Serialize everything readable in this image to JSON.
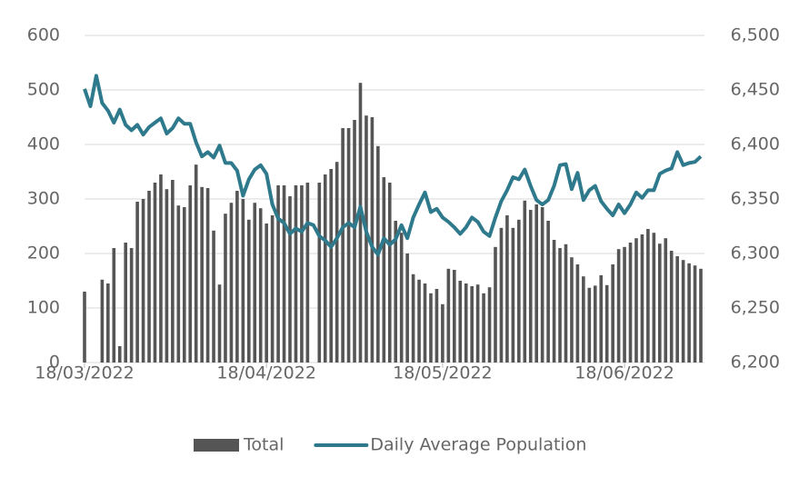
{
  "chart_data": {
    "type": "bar-line",
    "categories": [
      "18/03/2022",
      null,
      null,
      null,
      null,
      null,
      null,
      null,
      null,
      null,
      null,
      null,
      null,
      null,
      null,
      null,
      null,
      null,
      null,
      null,
      null,
      null,
      null,
      null,
      null,
      null,
      null,
      null,
      null,
      null,
      null,
      "18/04/2022",
      null,
      null,
      null,
      null,
      null,
      null,
      null,
      null,
      null,
      null,
      null,
      null,
      null,
      null,
      null,
      null,
      null,
      null,
      null,
      null,
      null,
      null,
      null,
      null,
      null,
      null,
      null,
      null,
      null,
      "18/05/2022",
      null,
      null,
      null,
      null,
      null,
      null,
      null,
      null,
      null,
      null,
      null,
      null,
      null,
      null,
      null,
      null,
      null,
      null,
      null,
      null,
      null,
      null,
      null,
      null,
      null,
      null,
      null,
      null,
      null,
      null,
      "18/06/2022",
      null,
      null,
      null,
      null,
      null,
      null,
      null,
      null,
      null,
      null,
      null,
      null,
      null
    ],
    "series": [
      {
        "name": "Total",
        "type": "bar",
        "color": "#555555",
        "values": [
          130,
          null,
          null,
          152,
          145,
          210,
          30,
          220,
          210,
          295,
          300,
          315,
          330,
          345,
          318,
          335,
          288,
          285,
          325,
          363,
          322,
          320,
          242,
          143,
          273,
          293,
          315,
          300,
          262,
          293,
          283,
          255,
          270,
          325,
          325,
          305,
          325,
          325,
          330,
          null,
          330,
          345,
          355,
          368,
          430,
          430,
          445,
          513,
          453,
          450,
          397,
          340,
          330,
          260,
          238,
          200,
          162,
          152,
          145,
          127,
          135,
          107,
          172,
          170,
          150,
          145,
          140,
          143,
          127,
          138,
          212,
          247,
          270,
          247,
          262,
          297,
          280,
          290,
          285,
          260,
          225,
          210,
          217,
          193,
          180,
          158,
          137,
          141,
          160,
          142,
          180,
          208,
          212,
          220,
          228,
          235,
          245,
          238,
          218,
          228,
          205,
          195,
          188,
          182,
          178,
          172
        ]
      },
      {
        "name": "Daily Average Population",
        "type": "line",
        "axis": "y2",
        "color": "#2e7a8c",
        "values": [
          6451,
          6435,
          6463,
          6438,
          6431,
          6420,
          6432,
          6418,
          6413,
          6418,
          6409,
          6416,
          6420,
          6424,
          6410,
          6415,
          6424,
          6419,
          6419,
          6402,
          6389,
          6393,
          6388,
          6399,
          6383,
          6383,
          6376,
          6353,
          6368,
          6377,
          6381,
          6373,
          6345,
          6332,
          6328,
          6318,
          6323,
          6320,
          6328,
          6326,
          6316,
          6312,
          6306,
          6314,
          6324,
          6328,
          6324,
          6343,
          6320,
          6306,
          6299,
          6314,
          6308,
          6313,
          6326,
          6314,
          6333,
          6345,
          6356,
          6338,
          6341,
          6333,
          6329,
          6324,
          6318,
          6324,
          6333,
          6329,
          6320,
          6316,
          6333,
          6348,
          6358,
          6370,
          6368,
          6377,
          6362,
          6349,
          6345,
          6349,
          6362,
          6381,
          6382,
          6359,
          6374,
          6349,
          6358,
          6362,
          6348,
          6341,
          6335,
          6345,
          6337,
          6345,
          6356,
          6351,
          6358,
          6358,
          6373,
          6376,
          6378,
          6393,
          6381,
          6383,
          6384,
          6389
        ]
      }
    ],
    "ylim": [
      0,
      600
    ],
    "yticks": [
      0,
      100,
      200,
      300,
      400,
      500,
      600
    ],
    "y2lim": [
      6200,
      6500
    ],
    "y2ticks": [
      {
        "value": 6200,
        "label": "6,200"
      },
      {
        "value": 6250,
        "label": "6,250"
      },
      {
        "value": 6300,
        "label": "6,300"
      },
      {
        "value": 6350,
        "label": "6,350"
      },
      {
        "value": 6400,
        "label": "6,400"
      },
      {
        "value": 6450,
        "label": "6,450"
      },
      {
        "value": 6500,
        "label": "6,500"
      }
    ],
    "grid": true,
    "legend": "bottom"
  }
}
